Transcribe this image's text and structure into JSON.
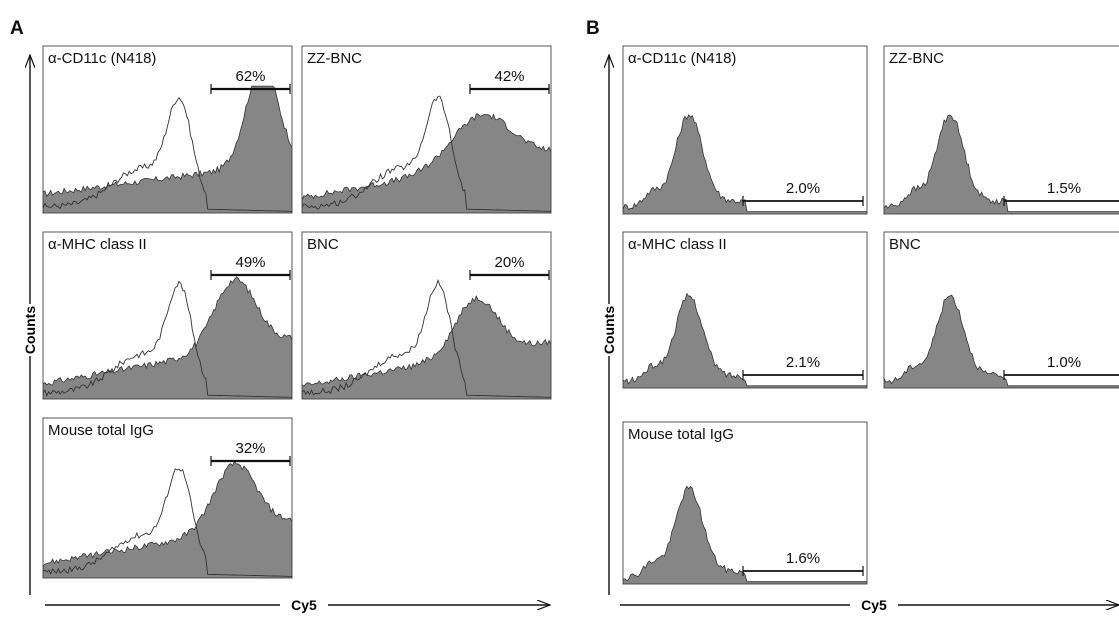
{
  "panels": [
    {
      "id": "A",
      "label": "A",
      "y_axis_label": "Counts",
      "x_axis_label": "Cy5",
      "plots": [
        {
          "name": "α-CD11c (N418)",
          "percent": "62%",
          "shift": "high"
        },
        {
          "name": "ZZ-BNC",
          "percent": "42%",
          "shift": "broad"
        },
        {
          "name": "α-MHC class II",
          "percent": "49%",
          "shift": "mid"
        },
        {
          "name": "BNC",
          "percent": "20%",
          "shift": "low"
        },
        {
          "name": "Mouse total IgG",
          "percent": "32%",
          "shift": "mid"
        }
      ]
    },
    {
      "id": "B",
      "label": "B",
      "y_axis_label": "Counts",
      "x_axis_label": "Cy5",
      "plots": [
        {
          "name": "α-CD11c (N418)",
          "percent": "2.0%",
          "shift": "none"
        },
        {
          "name": "ZZ-BNC",
          "percent": "1.5%",
          "shift": "none"
        },
        {
          "name": "α-MHC class II",
          "percent": "2.1%",
          "shift": "none"
        },
        {
          "name": "BNC",
          "percent": "1.0%",
          "shift": "none"
        },
        {
          "name": "Mouse total IgG",
          "percent": "1.6%",
          "shift": "none"
        }
      ]
    }
  ],
  "chart_data": [
    {
      "type": "area",
      "title": "",
      "xlabel": "Cy5",
      "ylabel": "Counts",
      "series": [
        {
          "name": "α-CD11c (N418)",
          "gated_percent": 62
        },
        {
          "name": "ZZ-BNC",
          "gated_percent": 42
        },
        {
          "name": "α-MHC class II",
          "gated_percent": 49
        },
        {
          "name": "BNC",
          "gated_percent": 20
        },
        {
          "name": "Mouse total IgG",
          "gated_percent": 32
        }
      ]
    },
    {
      "type": "area",
      "title": "",
      "xlabel": "Cy5",
      "ylabel": "Counts",
      "series": [
        {
          "name": "α-CD11c (N418)",
          "gated_percent": 2.0
        },
        {
          "name": "ZZ-BNC",
          "gated_percent": 1.5
        },
        {
          "name": "α-MHC class II",
          "gated_percent": 2.1
        },
        {
          "name": "BNC",
          "gated_percent": 1.0
        },
        {
          "name": "Mouse total IgG",
          "gated_percent": 1.6
        }
      ]
    }
  ]
}
